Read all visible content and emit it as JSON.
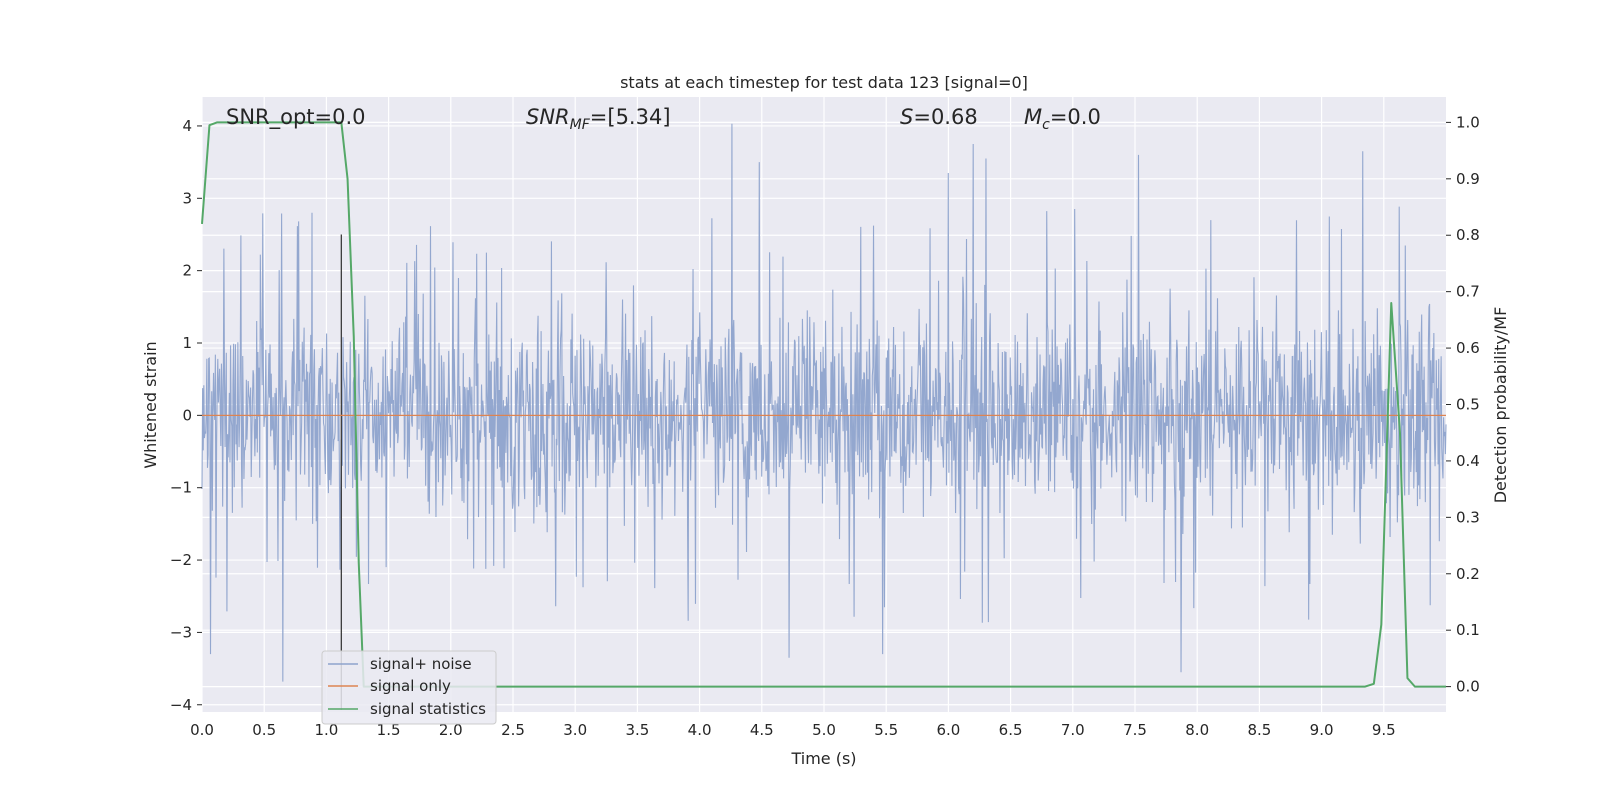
{
  "chart_data": {
    "type": "line",
    "title": "stats at each timestep for test data 123 [signal=0]",
    "xlabel": "Time (s)",
    "ylabel_left": "Whitened strain",
    "ylabel_right": "Detection probability/MF",
    "xlim": [
      0,
      10
    ],
    "ylim_left": [
      -4.1,
      4.4
    ],
    "ylim_right": [
      -0.045,
      1.045
    ],
    "x_ticks": [
      "0.0",
      "0.5",
      "1.0",
      "1.5",
      "2.0",
      "2.5",
      "3.0",
      "3.5",
      "4.0",
      "4.5",
      "5.0",
      "5.5",
      "6.0",
      "6.5",
      "7.0",
      "7.5",
      "8.0",
      "8.5",
      "9.0",
      "9.5"
    ],
    "y_ticks_left": [
      "4",
      "3",
      "2",
      "1",
      "0",
      "−1",
      "−2",
      "−3",
      "−4"
    ],
    "y_ticks_right": [
      "1.0",
      "0.9",
      "0.8",
      "0.7",
      "0.6",
      "0.5",
      "0.4",
      "0.3",
      "0.2",
      "0.1",
      "0.0"
    ],
    "grid": true,
    "legend_position": "bottom-left",
    "annotations": {
      "snr_opt": "SNR_opt=0.0",
      "snr_mf_base": "SNR",
      "snr_mf_sub": "MF",
      "snr_mf_value": "=[5.34]",
      "s_symbol": "S",
      "s_value": "=0.68",
      "mc_symbol": "M",
      "mc_sub": "c",
      "mc_value": "=0.0"
    },
    "vertical_marker_x": 1.12,
    "series": [
      {
        "name": "signal+ noise",
        "axis": "left",
        "color": "#8ea3cc",
        "kind": "noise",
        "n_samples": 2048,
        "envelope": {
          "typical_abs_max": 1.4,
          "peak_max": 4.03,
          "peak_min": -3.68
        },
        "notable_peaks": [
          {
            "x": 4.26,
            "y": 4.03
          },
          {
            "x": 6.2,
            "y": 3.75
          },
          {
            "x": 6.0,
            "y": 3.35
          },
          {
            "x": 6.3,
            "y": 3.55
          },
          {
            "x": 4.48,
            "y": 3.5
          },
          {
            "x": 7.53,
            "y": 3.6
          },
          {
            "x": 9.33,
            "y": 3.65
          },
          {
            "x": 0.65,
            "y": -3.68
          },
          {
            "x": 7.87,
            "y": -3.55
          },
          {
            "x": 4.72,
            "y": -3.35
          },
          {
            "x": 0.07,
            "y": -3.3
          },
          {
            "x": 5.47,
            "y": -3.3
          }
        ]
      },
      {
        "name": "signal only",
        "axis": "left",
        "color": "#dd8452",
        "x": [
          0,
          10
        ],
        "y": [
          0,
          0
        ]
      },
      {
        "name": "signal statistics",
        "axis": "right",
        "color": "#55a868",
        "x": [
          0,
          0.06,
          0.12,
          0.5,
          0.9,
          1.12,
          1.17,
          1.22,
          1.26,
          1.3,
          2.0,
          3.0,
          4.0,
          5.0,
          6.0,
          7.0,
          8.0,
          9.0,
          9.35,
          9.42,
          9.48,
          9.56,
          9.63,
          9.69,
          9.75,
          9.85,
          10.0
        ],
        "y": [
          0.82,
          0.995,
          1.0,
          1.0,
          1.0,
          1.0,
          0.9,
          0.62,
          0.22,
          0.0,
          0.0,
          0.0,
          0.0,
          0.0,
          0.0,
          0.0,
          0.0,
          0.0,
          0.0,
          0.005,
          0.11,
          0.68,
          0.45,
          0.015,
          0.0,
          0.0,
          0.0
        ]
      }
    ]
  }
}
